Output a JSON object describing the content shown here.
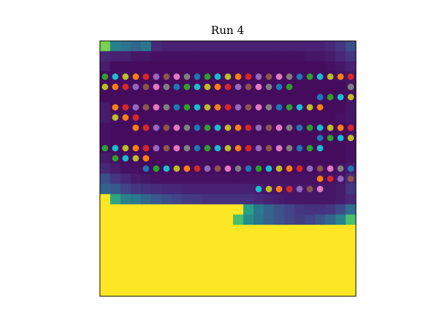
{
  "chart_data": {
    "type": "heatmap",
    "title": "Run 4",
    "xlabel": "",
    "ylabel": "",
    "grid": false,
    "axes_ticks": false,
    "colormap": "viridis",
    "nrows": 25,
    "ncols": 25,
    "heatmap_rows": [
      [
        0.85,
        0.55,
        0.48,
        0.42,
        0.5,
        0.15,
        0.12,
        0.12,
        0.12,
        0.12,
        0.12,
        0.12,
        0.12,
        0.12,
        0.12,
        0.12,
        0.12,
        0.12,
        0.12,
        0.12,
        0.12,
        0.12,
        0.15,
        0.2,
        0.3
      ],
      [
        0.15,
        0.12,
        0.12,
        0.08,
        0.08,
        0.06,
        0.06,
        0.06,
        0.06,
        0.06,
        0.06,
        0.06,
        0.06,
        0.06,
        0.06,
        0.06,
        0.06,
        0.06,
        0.06,
        0.06,
        0.08,
        0.08,
        0.1,
        0.15,
        0.2
      ],
      [
        0.1,
        0.04,
        0.04,
        0.04,
        0.04,
        0.04,
        0.04,
        0.04,
        0.04,
        0.04,
        0.04,
        0.04,
        0.04,
        0.04,
        0.04,
        0.04,
        0.04,
        0.04,
        0.04,
        0.04,
        0.04,
        0.04,
        0.06,
        0.08,
        0.12
      ],
      [
        0.04,
        0.04,
        0.04,
        0.04,
        0.04,
        0.04,
        0.04,
        0.04,
        0.04,
        0.04,
        0.04,
        0.04,
        0.04,
        0.04,
        0.04,
        0.04,
        0.04,
        0.04,
        0.04,
        0.04,
        0.04,
        0.04,
        0.04,
        0.06,
        0.08
      ],
      [
        0.04,
        0.04,
        0.04,
        0.04,
        0.04,
        0.04,
        0.04,
        0.04,
        0.04,
        0.04,
        0.04,
        0.04,
        0.04,
        0.04,
        0.04,
        0.04,
        0.04,
        0.04,
        0.04,
        0.04,
        0.04,
        0.04,
        0.04,
        0.04,
        0.06
      ],
      [
        0.04,
        0.04,
        0.04,
        0.04,
        0.04,
        0.04,
        0.04,
        0.04,
        0.04,
        0.04,
        0.04,
        0.04,
        0.04,
        0.04,
        0.04,
        0.04,
        0.04,
        0.04,
        0.04,
        0.04,
        0.04,
        0.04,
        0.04,
        0.04,
        0.06
      ],
      [
        0.1,
        0.04,
        0.04,
        0.04,
        0.04,
        0.04,
        0.04,
        0.04,
        0.04,
        0.04,
        0.04,
        0.04,
        0.04,
        0.04,
        0.04,
        0.04,
        0.04,
        0.04,
        0.04,
        0.04,
        0.04,
        0.04,
        0.04,
        0.04,
        0.08
      ],
      [
        0.1,
        0.06,
        0.04,
        0.04,
        0.04,
        0.04,
        0.04,
        0.04,
        0.04,
        0.04,
        0.04,
        0.04,
        0.04,
        0.04,
        0.04,
        0.04,
        0.04,
        0.04,
        0.04,
        0.04,
        0.04,
        0.04,
        0.04,
        0.06,
        0.08
      ],
      [
        0.06,
        0.04,
        0.04,
        0.04,
        0.04,
        0.04,
        0.04,
        0.04,
        0.04,
        0.04,
        0.04,
        0.04,
        0.04,
        0.04,
        0.04,
        0.04,
        0.04,
        0.04,
        0.04,
        0.04,
        0.04,
        0.04,
        0.04,
        0.04,
        0.06
      ],
      [
        0.06,
        0.04,
        0.04,
        0.04,
        0.04,
        0.04,
        0.04,
        0.04,
        0.04,
        0.04,
        0.04,
        0.04,
        0.04,
        0.04,
        0.04,
        0.04,
        0.04,
        0.04,
        0.04,
        0.04,
        0.04,
        0.04,
        0.04,
        0.04,
        0.06
      ],
      [
        0.06,
        0.04,
        0.04,
        0.04,
        0.04,
        0.04,
        0.04,
        0.04,
        0.04,
        0.04,
        0.04,
        0.04,
        0.04,
        0.04,
        0.04,
        0.04,
        0.04,
        0.04,
        0.04,
        0.04,
        0.04,
        0.04,
        0.04,
        0.04,
        0.06
      ],
      [
        0.1,
        0.06,
        0.04,
        0.04,
        0.04,
        0.04,
        0.04,
        0.04,
        0.04,
        0.04,
        0.04,
        0.04,
        0.04,
        0.04,
        0.04,
        0.04,
        0.04,
        0.04,
        0.04,
        0.04,
        0.04,
        0.04,
        0.04,
        0.04,
        0.06
      ],
      [
        0.15,
        0.1,
        0.06,
        0.06,
        0.04,
        0.04,
        0.04,
        0.04,
        0.04,
        0.04,
        0.04,
        0.04,
        0.04,
        0.04,
        0.04,
        0.04,
        0.04,
        0.04,
        0.04,
        0.04,
        0.04,
        0.04,
        0.04,
        0.06,
        0.1
      ],
      [
        0.3,
        0.2,
        0.15,
        0.1,
        0.08,
        0.06,
        0.06,
        0.06,
        0.06,
        0.06,
        0.06,
        0.06,
        0.06,
        0.06,
        0.06,
        0.06,
        0.06,
        0.06,
        0.06,
        0.06,
        0.06,
        0.06,
        0.06,
        0.08,
        0.15
      ],
      [
        0.4,
        0.35,
        0.25,
        0.2,
        0.18,
        0.16,
        0.14,
        0.14,
        0.12,
        0.12,
        0.12,
        0.12,
        0.12,
        0.12,
        0.12,
        0.1,
        0.08,
        0.08,
        0.08,
        0.08,
        0.08,
        0.08,
        0.08,
        0.1,
        0.2
      ],
      [
        1.0,
        0.7,
        0.55,
        0.5,
        0.42,
        0.35,
        0.3,
        0.25,
        0.22,
        0.2,
        0.18,
        0.18,
        0.18,
        0.18,
        0.18,
        0.15,
        0.12,
        0.1,
        0.08,
        0.08,
        0.08,
        0.08,
        0.08,
        0.1,
        0.15
      ],
      [
        1.0,
        1.0,
        1.0,
        1.0,
        1.0,
        1.0,
        1.0,
        1.0,
        1.0,
        1.0,
        1.0,
        1.0,
        1.0,
        1.0,
        0.68,
        0.5,
        0.4,
        0.32,
        0.25,
        0.2,
        0.18,
        0.18,
        0.2,
        0.28,
        0.45
      ],
      [
        1.0,
        1.0,
        1.0,
        1.0,
        1.0,
        1.0,
        1.0,
        1.0,
        1.0,
        1.0,
        1.0,
        1.0,
        1.0,
        0.78,
        0.62,
        0.48,
        0.4,
        0.32,
        0.25,
        0.22,
        0.25,
        0.32,
        0.42,
        0.55,
        0.78
      ],
      [
        1.0,
        1.0,
        1.0,
        1.0,
        1.0,
        1.0,
        1.0,
        1.0,
        1.0,
        1.0,
        1.0,
        1.0,
        1.0,
        1.0,
        1.0,
        1.0,
        1.0,
        1.0,
        1.0,
        1.0,
        1.0,
        1.0,
        1.0,
        1.0,
        1.0
      ],
      [
        1.0,
        1.0,
        1.0,
        1.0,
        1.0,
        1.0,
        1.0,
        1.0,
        1.0,
        1.0,
        1.0,
        1.0,
        1.0,
        1.0,
        1.0,
        1.0,
        1.0,
        1.0,
        1.0,
        1.0,
        1.0,
        1.0,
        1.0,
        1.0,
        1.0
      ],
      [
        1.0,
        1.0,
        1.0,
        1.0,
        1.0,
        1.0,
        1.0,
        1.0,
        1.0,
        1.0,
        1.0,
        1.0,
        1.0,
        1.0,
        1.0,
        1.0,
        1.0,
        1.0,
        1.0,
        1.0,
        1.0,
        1.0,
        1.0,
        1.0,
        1.0
      ],
      [
        1.0,
        1.0,
        1.0,
        1.0,
        1.0,
        1.0,
        1.0,
        1.0,
        1.0,
        1.0,
        1.0,
        1.0,
        1.0,
        1.0,
        1.0,
        1.0,
        1.0,
        1.0,
        1.0,
        1.0,
        1.0,
        1.0,
        1.0,
        1.0,
        1.0
      ],
      [
        1.0,
        1.0,
        1.0,
        1.0,
        1.0,
        1.0,
        1.0,
        1.0,
        1.0,
        1.0,
        1.0,
        1.0,
        1.0,
        1.0,
        1.0,
        1.0,
        1.0,
        1.0,
        1.0,
        1.0,
        1.0,
        1.0,
        1.0,
        1.0,
        1.0
      ],
      [
        1.0,
        1.0,
        1.0,
        1.0,
        1.0,
        1.0,
        1.0,
        1.0,
        1.0,
        1.0,
        1.0,
        1.0,
        1.0,
        1.0,
        1.0,
        1.0,
        1.0,
        1.0,
        1.0,
        1.0,
        1.0,
        1.0,
        1.0,
        1.0,
        1.0
      ],
      [
        1.0,
        1.0,
        1.0,
        1.0,
        1.0,
        1.0,
        1.0,
        1.0,
        1.0,
        1.0,
        1.0,
        1.0,
        1.0,
        1.0,
        1.0,
        1.0,
        1.0,
        1.0,
        1.0,
        1.0,
        1.0,
        1.0,
        1.0,
        1.0,
        1.0
      ]
    ],
    "scatter_palette": [
      "#2ca02c",
      "#17becf",
      "#bcbd22",
      "#ff7f0e",
      "#d62728",
      "#9467bd",
      "#8c564b",
      "#e377c2",
      "#7f7f7f",
      "#1f77b4"
    ],
    "scatter_rows": [
      {
        "row": 3,
        "start": 0,
        "end": 24,
        "offset": 0
      },
      {
        "row": 4,
        "start": 0,
        "end": 18,
        "offset": 2
      },
      {
        "row": 4,
        "start": 24,
        "end": 24,
        "offset": 4
      },
      {
        "row": 5,
        "start": 21,
        "end": 24,
        "offset": 8
      },
      {
        "row": 6,
        "start": 1,
        "end": 21,
        "offset": 2
      },
      {
        "row": 7,
        "start": 1,
        "end": 3,
        "offset": 1
      },
      {
        "row": 8,
        "start": 3,
        "end": 24,
        "offset": 0
      },
      {
        "row": 9,
        "start": 21,
        "end": 24,
        "offset": 8
      },
      {
        "row": 10,
        "start": 0,
        "end": 21,
        "offset": 0
      },
      {
        "row": 11,
        "start": 1,
        "end": 4,
        "offset": 9
      },
      {
        "row": 12,
        "start": 4,
        "end": 24,
        "offset": 5
      },
      {
        "row": 13,
        "start": 21,
        "end": 24,
        "offset": 2
      },
      {
        "row": 14,
        "start": 15,
        "end": 21,
        "offset": 6
      }
    ]
  }
}
